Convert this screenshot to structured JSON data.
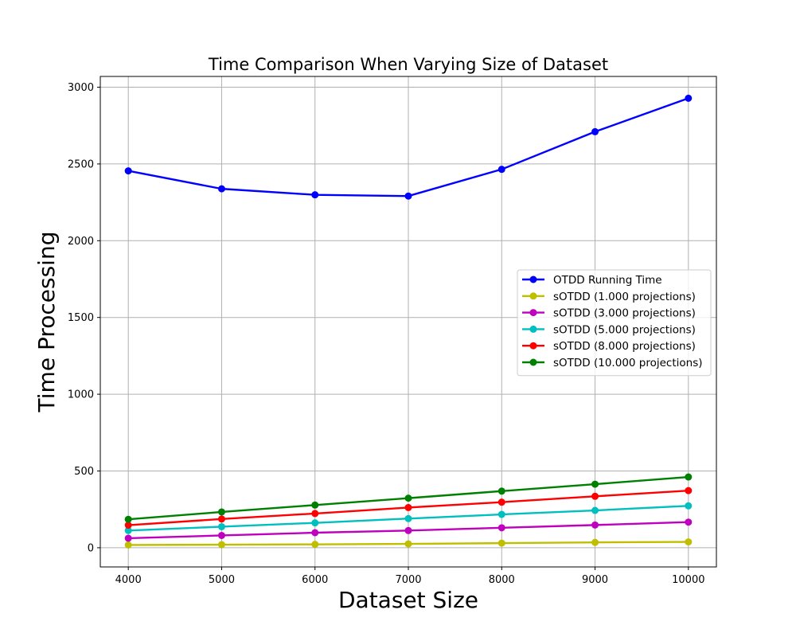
{
  "chart_data": {
    "type": "line",
    "title": "Time Comparison When Varying Size of Dataset",
    "xlabel": "Dataset Size",
    "ylabel": "Time Processing",
    "x": [
      4000,
      5000,
      6000,
      7000,
      8000,
      9000,
      10000
    ],
    "xlim": [
      3700,
      10300
    ],
    "ylim": [
      -125,
      3070
    ],
    "xticks": [
      4000,
      5000,
      6000,
      7000,
      8000,
      9000,
      10000
    ],
    "yticks": [
      0,
      500,
      1000,
      1500,
      2000,
      2500,
      3000
    ],
    "grid": true,
    "legend_position": "center-right",
    "series": [
      {
        "name": "OTDD Running Time",
        "color": "#0000ff",
        "values": [
          2455,
          2338,
          2299,
          2291,
          2465,
          2710,
          2928
        ]
      },
      {
        "name": "sOTDD (1.000 projections)",
        "color": "#bfbf00",
        "values": [
          18,
          20,
          22,
          25,
          30,
          35,
          38
        ]
      },
      {
        "name": "sOTDD (3.000 projections)",
        "color": "#bf00bf",
        "values": [
          62,
          80,
          98,
          112,
          130,
          148,
          167
        ]
      },
      {
        "name": "sOTDD (5.000 projections)",
        "color": "#00bfbf",
        "values": [
          112,
          137,
          162,
          190,
          217,
          243,
          273
        ]
      },
      {
        "name": "sOTDD (8.000 projections)",
        "color": "#ff0000",
        "values": [
          147,
          187,
          223,
          262,
          297,
          335,
          372
        ]
      },
      {
        "name": "sOTDD (10.000 projections)",
        "color": "#008000",
        "values": [
          185,
          233,
          278,
          323,
          369,
          414,
          461
        ]
      }
    ]
  }
}
